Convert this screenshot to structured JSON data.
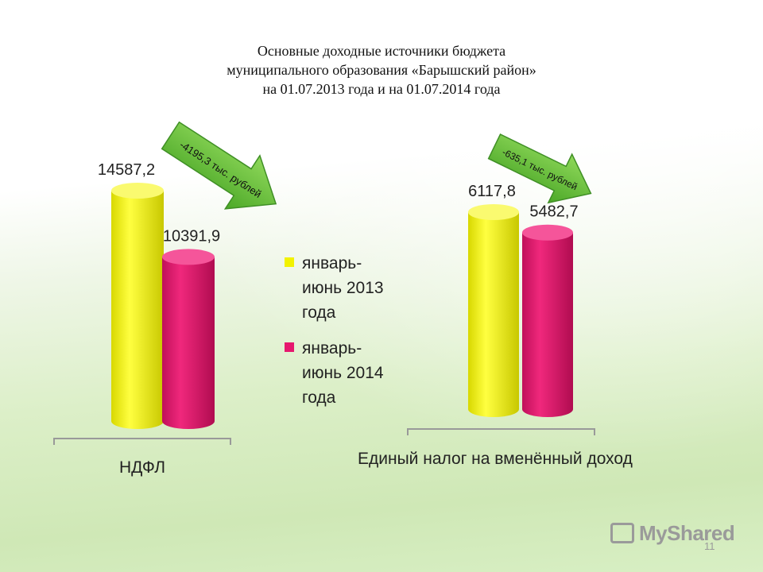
{
  "title_lines": [
    "Основные доходные источники бюджета",
    "муниципального образования «Барышский район»",
    "на 01.07.2013 года и на 01.07.2014 года"
  ],
  "colors": {
    "series1": "#f2f200",
    "series2": "#e6186e",
    "arrow": "#6cc23a"
  },
  "watermark": "MyShared",
  "page_number": "11",
  "chart_data": [
    {
      "type": "bar",
      "categories": [
        "НДФЛ"
      ],
      "series": [
        {
          "name": "январь-июнь 2013 года",
          "values": [
            14587.2
          ],
          "label": "14587,2"
        },
        {
          "name": "январь-июнь 2014 года",
          "values": [
            10391.9
          ],
          "label": "10391,9"
        }
      ],
      "annotation": "-4195,3 тыс. рублей"
    },
    {
      "type": "bar",
      "categories": [
        "Единый налог на вменённый доход"
      ],
      "series": [
        {
          "name": "январь-июнь 2013 года",
          "values": [
            6117.8
          ],
          "label": "6117,8"
        },
        {
          "name": "январь-июнь 2014 года",
          "values": [
            5482.7
          ],
          "label": "5482,7"
        }
      ],
      "annotation": "-635,1 тыс. рублей"
    }
  ],
  "legend": [
    {
      "line1": "январь-",
      "line2": "июнь 2013",
      "line3": "года"
    },
    {
      "line1": "январь-",
      "line2": "июнь 2014",
      "line3": "года"
    }
  ]
}
